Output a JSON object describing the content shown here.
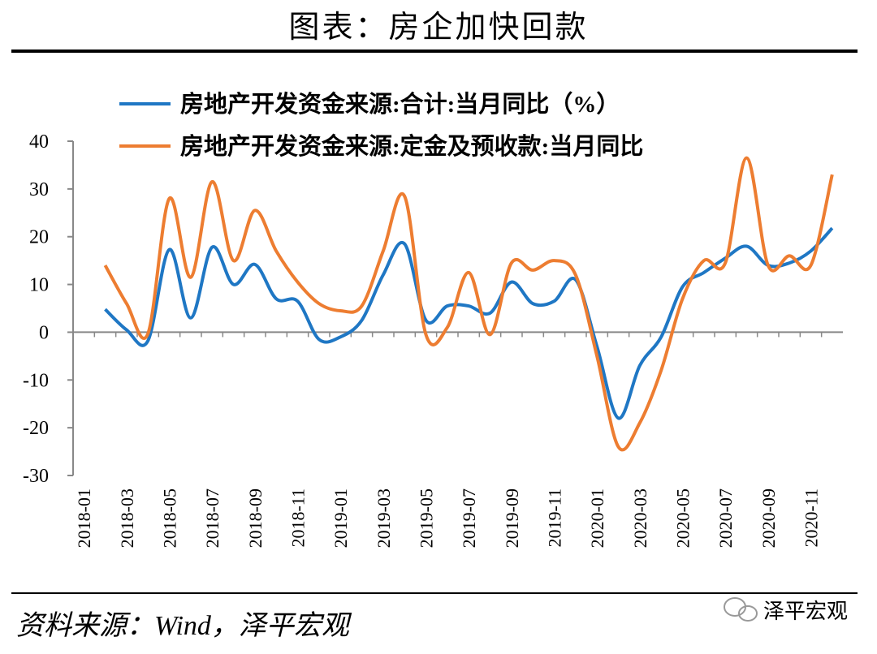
{
  "title": "图表：房企加快回款",
  "source": "资料来源：Wind，泽平宏观",
  "watermark": "泽平宏观",
  "chart_data": {
    "type": "line",
    "categories": [
      "2018-01",
      null,
      "2018-03",
      null,
      "2018-05",
      null,
      "2018-07",
      null,
      "2018-09",
      null,
      "2018-11",
      null,
      "2019-01",
      null,
      "2019-03",
      null,
      "2019-05",
      null,
      "2019-07",
      null,
      "2019-09",
      null,
      "2019-11",
      null,
      "2020-01",
      null,
      "2020-03",
      null,
      "2020-05",
      null,
      "2020-07",
      null,
      "2020-09",
      null,
      "2020-11",
      null
    ],
    "series": [
      {
        "name": "房地产开发资金来源:合计:当月同比（%）",
        "color": "#1f77c4",
        "values": [
          null,
          4.8,
          0.5,
          -1.8,
          17.3,
          3,
          17.8,
          10,
          14.2,
          7,
          6.5,
          -1.5,
          -1,
          2.5,
          12,
          18.5,
          2.5,
          5.5,
          5.5,
          4,
          10.5,
          6,
          6.5,
          11,
          -3,
          -18,
          -7,
          -1,
          9.5,
          12.5,
          15.5,
          18,
          14,
          14.5,
          17,
          21.8
        ]
      },
      {
        "name": "房地产开发资金来源:定金及预收款:当月同比",
        "color": "#ed7d31",
        "values": [
          null,
          14,
          6,
          -0.3,
          28,
          11.5,
          31.5,
          15,
          25.5,
          17,
          10.5,
          6,
          4.5,
          5.5,
          17,
          28.5,
          -0.5,
          1,
          12.5,
          -0.5,
          14.5,
          13,
          15,
          12,
          -5,
          -24,
          -19,
          -8,
          7,
          15,
          14.5,
          36.5,
          14,
          16,
          14,
          33
        ]
      }
    ],
    "ylim": [
      -30,
      40
    ],
    "yticks": [
      40,
      30,
      20,
      10,
      0,
      -10,
      -20,
      -30
    ]
  }
}
